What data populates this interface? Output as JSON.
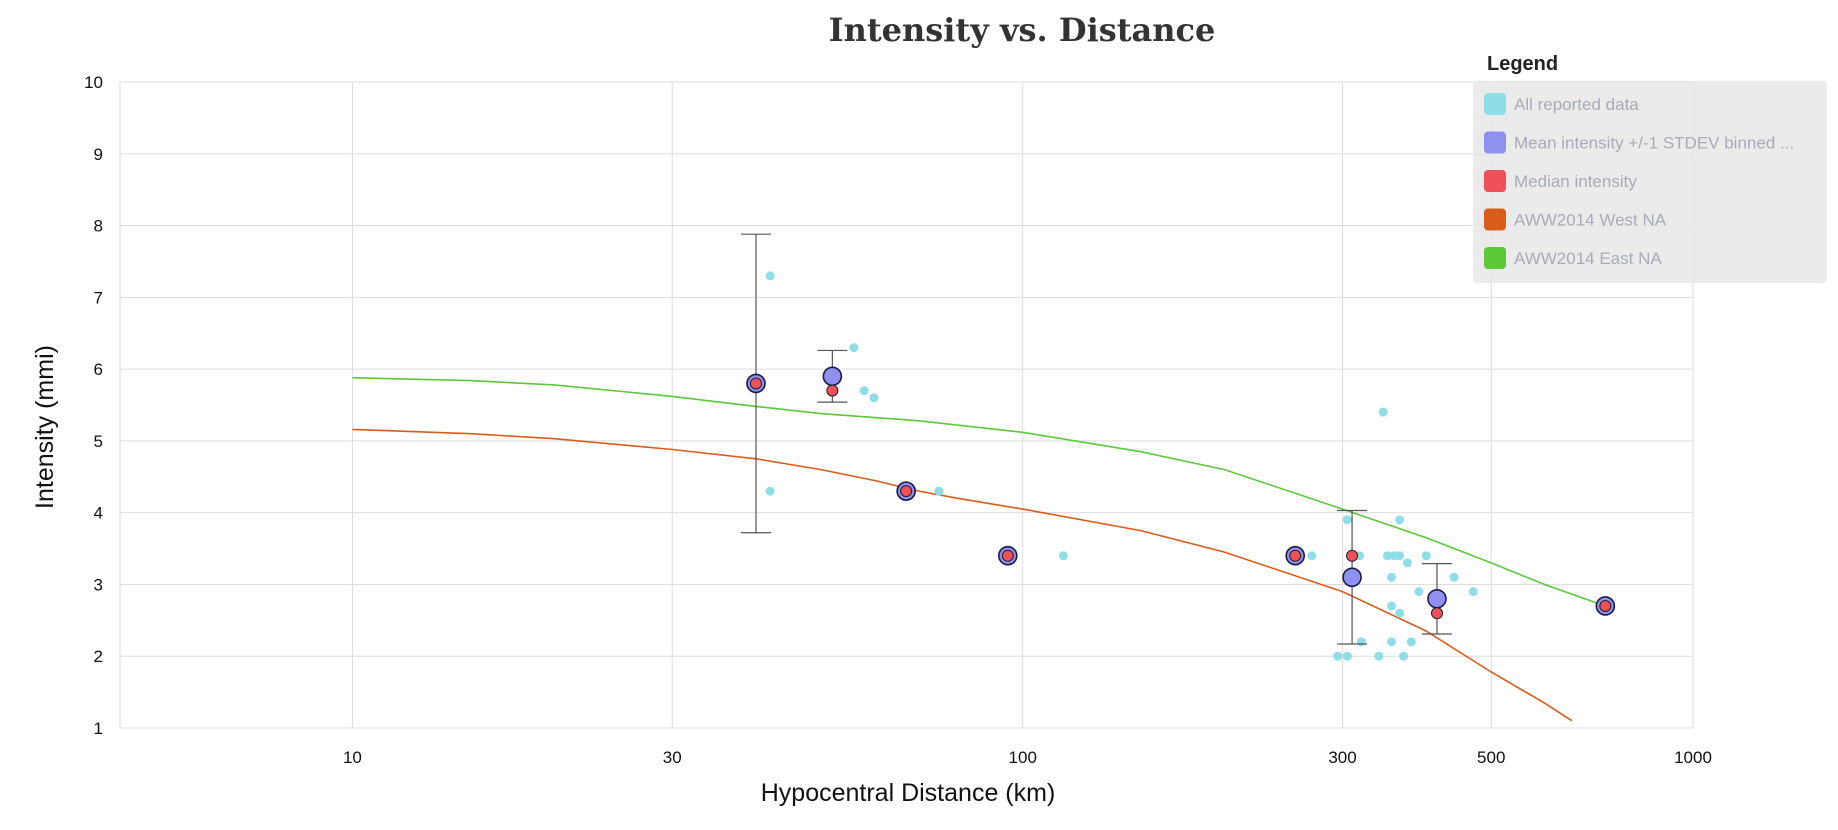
{
  "chart_data": {
    "type": "scatter",
    "title": "Intensity vs. Distance",
    "xlabel": "Hypocentral Distance (km)",
    "ylabel": "Intensity (mmi)",
    "xscale": "log",
    "xlim": [
      4.5,
      1000
    ],
    "ylim": [
      1,
      10
    ],
    "xticks": [
      10,
      30,
      100,
      300,
      500,
      1000
    ],
    "yticks": [
      1,
      2,
      3,
      4,
      5,
      6,
      7,
      8,
      9,
      10
    ],
    "grid": true,
    "legend": {
      "title": "Legend",
      "placement": "top-right",
      "entries": [
        {
          "label": "All reported data",
          "color": "#8fdde6"
        },
        {
          "label": "Mean intensity +/-1 STDEV binned ...",
          "color": "#9090f0"
        },
        {
          "label": "Median intensity",
          "color": "#f0505a"
        },
        {
          "label": "AWW2014 West NA",
          "color": "#d95c1a"
        },
        {
          "label": "AWW2014 East NA",
          "color": "#5cc83a"
        }
      ]
    },
    "series": [
      {
        "name": "All reported data",
        "kind": "points",
        "color": "#8fdde6",
        "points": [
          [
            42,
            7.3
          ],
          [
            42,
            4.3
          ],
          [
            56,
            6.3
          ],
          [
            58,
            5.7
          ],
          [
            60,
            5.6
          ],
          [
            75,
            4.3
          ],
          [
            115,
            3.4
          ],
          [
            270,
            3.4
          ],
          [
            305,
            3.9
          ],
          [
            312,
            3.4
          ],
          [
            318,
            3.4
          ],
          [
            350,
            3.4
          ],
          [
            358,
            3.4
          ],
          [
            365,
            3.4
          ],
          [
            375,
            3.3
          ],
          [
            400,
            3.4
          ],
          [
            440,
            3.1
          ],
          [
            470,
            2.9
          ],
          [
            345,
            5.4
          ],
          [
            365,
            3.9
          ],
          [
            355,
            3.1
          ],
          [
            390,
            2.9
          ],
          [
            355,
            2.7
          ],
          [
            365,
            2.6
          ],
          [
            295,
            2.0
          ],
          [
            305,
            2.0
          ],
          [
            320,
            2.2
          ],
          [
            340,
            2.0
          ],
          [
            355,
            2.2
          ],
          [
            370,
            2.0
          ],
          [
            380,
            2.2
          ]
        ]
      },
      {
        "name": "Mean intensity +/-1 STDEV binned ...",
        "kind": "mean-error",
        "color": "#9090f0",
        "points": [
          {
            "x": 40,
            "y": 5.8,
            "lo": 3.72,
            "hi": 7.88
          },
          {
            "x": 52,
            "y": 5.9,
            "lo": 5.54,
            "hi": 6.26
          },
          {
            "x": 67,
            "y": 4.3
          },
          {
            "x": 95,
            "y": 3.4
          },
          {
            "x": 255,
            "y": 3.4
          },
          {
            "x": 310,
            "y": 3.1,
            "lo": 2.17,
            "hi": 4.03
          },
          {
            "x": 415,
            "y": 2.8,
            "lo": 2.31,
            "hi": 3.29
          },
          {
            "x": 740,
            "y": 2.7
          }
        ]
      },
      {
        "name": "Median intensity",
        "kind": "points",
        "color": "#f0505a",
        "points": [
          [
            40,
            5.8
          ],
          [
            52,
            5.7
          ],
          [
            67,
            4.3
          ],
          [
            95,
            3.4
          ],
          [
            255,
            3.4
          ],
          [
            310,
            3.4
          ],
          [
            415,
            2.6
          ],
          [
            740,
            2.7
          ]
        ]
      },
      {
        "name": "AWW2014 West NA",
        "kind": "line",
        "color": "#d95c1a",
        "points": [
          [
            10,
            5.16
          ],
          [
            15,
            5.1
          ],
          [
            20,
            5.03
          ],
          [
            30,
            4.88
          ],
          [
            40,
            4.75
          ],
          [
            50,
            4.6
          ],
          [
            60,
            4.45
          ],
          [
            70,
            4.3
          ],
          [
            80,
            4.2
          ],
          [
            100,
            4.05
          ],
          [
            150,
            3.75
          ],
          [
            200,
            3.45
          ],
          [
            300,
            2.9
          ],
          [
            400,
            2.35
          ],
          [
            500,
            1.78
          ],
          [
            600,
            1.35
          ],
          [
            660,
            1.1
          ]
        ]
      },
      {
        "name": "AWW2014 East NA",
        "kind": "line",
        "color": "#5cc83a",
        "points": [
          [
            10,
            5.88
          ],
          [
            15,
            5.84
          ],
          [
            20,
            5.78
          ],
          [
            30,
            5.62
          ],
          [
            40,
            5.48
          ],
          [
            50,
            5.38
          ],
          [
            70,
            5.28
          ],
          [
            100,
            5.12
          ],
          [
            150,
            4.85
          ],
          [
            200,
            4.6
          ],
          [
            300,
            4.05
          ],
          [
            400,
            3.65
          ],
          [
            500,
            3.3
          ],
          [
            600,
            3.0
          ],
          [
            740,
            2.7
          ]
        ]
      }
    ]
  }
}
